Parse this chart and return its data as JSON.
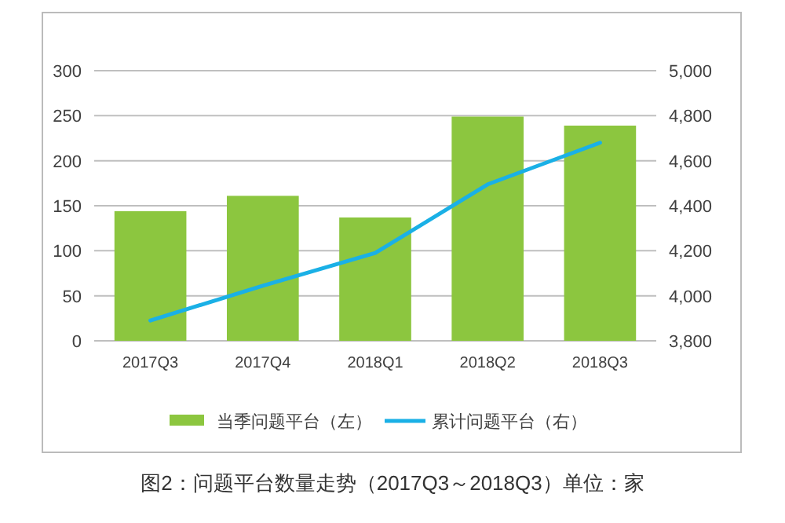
{
  "chart_data": {
    "type": "bar",
    "title": "图2：问题平台数量走势（2017Q3～2018Q3）单位：家",
    "categories": [
      "2017Q3",
      "2017Q4",
      "2018Q1",
      "2018Q2",
      "2018Q3"
    ],
    "series": [
      {
        "name": "当季问题平台（左）",
        "color": "#8cc63f",
        "values": [
          144,
          161,
          137,
          249,
          239
        ]
      },
      {
        "name": "累计问题平台（右）",
        "type": "line",
        "axis": "y2",
        "color": "#1ab0e6",
        "values": [
          3890,
          4045,
          4190,
          4495,
          4680
        ]
      }
    ],
    "ylim": [
      0,
      300
    ],
    "yticks": [
      0,
      50,
      100,
      150,
      200,
      250,
      300
    ],
    "y2lim": [
      3800,
      5000
    ],
    "y2ticks": [
      {
        "value": 3800,
        "label": "3,800"
      },
      {
        "value": 4000,
        "label": "4,000"
      },
      {
        "value": 4200,
        "label": "4,200"
      },
      {
        "value": 4400,
        "label": "4,400"
      },
      {
        "value": 4600,
        "label": "4,600"
      },
      {
        "value": 4800,
        "label": "4,800"
      },
      {
        "value": 5000,
        "label": "5,000"
      }
    ],
    "grid": "y",
    "legend": "bottom"
  }
}
